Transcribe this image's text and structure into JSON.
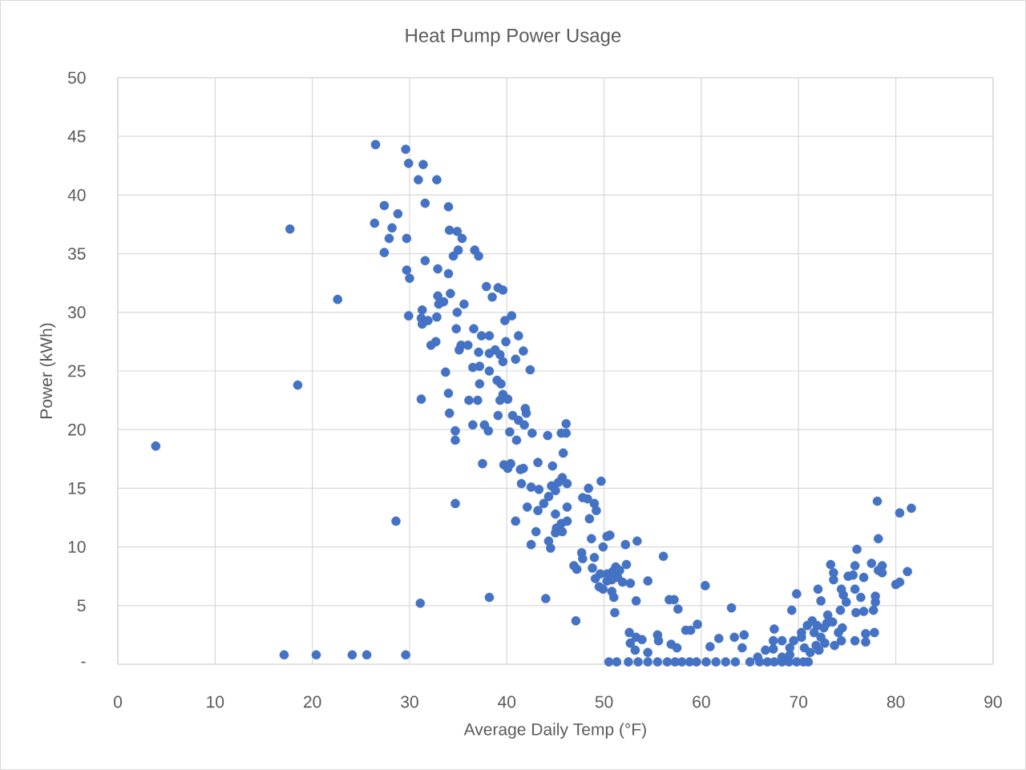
{
  "chart_data": {
    "type": "scatter",
    "title": "Heat Pump Power Usage",
    "xlabel": "Average Daily Temp (°F)",
    "ylabel": "Power (kWh)",
    "xlim": [
      0,
      90
    ],
    "xticks": [
      0,
      10,
      20,
      30,
      40,
      50,
      60,
      70,
      80,
      90
    ],
    "ylim": [
      0,
      50
    ],
    "yticks": [
      {
        "value": 0,
        "label": "-"
      },
      5,
      10,
      15,
      20,
      25,
      30,
      35,
      40,
      45,
      50
    ],
    "grid": true,
    "marker": "circle",
    "series": [
      {
        "color": "#4472c4",
        "x": [
          3.9,
          17.7,
          18.5,
          22.6,
          17.1,
          20.4,
          24.1,
          25.6,
          29.6,
          28.6,
          31.1,
          34.7,
          38.2,
          44.0,
          47.1,
          26.5,
          29.6,
          29.9,
          31.4,
          32.8,
          30.9,
          31.6,
          34.0,
          27.4,
          28.8,
          26.4,
          28.2,
          27.9,
          29.7,
          27.4,
          34.1,
          34.9,
          35.4,
          35.0,
          34.5,
          36.7,
          37.1,
          31.6,
          32.9,
          34.0,
          29.7,
          30.0,
          37.9,
          39.1,
          39.6,
          38.5,
          34.2,
          32.9,
          33.5,
          33.0,
          35.6,
          31.3,
          34.9,
          29.9,
          31.2,
          31.3,
          31.9,
          32.8,
          40.5,
          39.8,
          34.8,
          36.6,
          41.2,
          37.4,
          38.2,
          39.9,
          32.7,
          32.2,
          35.3,
          36.0,
          35.1,
          37.1,
          38.2,
          38.8,
          41.7,
          39.3,
          39.6,
          40.9,
          36.5,
          37.2,
          38.2,
          42.4,
          33.7,
          39.0,
          37.2,
          39.4,
          34.0,
          39.6,
          39.3,
          36.1,
          37.0,
          40.1,
          31.2,
          41.9,
          42.0,
          34.1,
          39.1,
          40.6,
          41.2,
          41.8,
          36.5,
          37.7,
          34.7,
          38.1,
          40.3,
          42.6,
          46.1,
          44.2,
          45.6,
          46.1,
          41.0,
          34.7,
          45.8,
          37.5,
          39.7,
          40.4,
          43.2,
          44.7,
          41.4,
          41.7,
          40.1,
          45.7,
          45.3,
          46.2,
          49.7,
          41.5,
          42.5,
          43.3,
          44.6,
          45.0,
          48.4,
          44.3,
          47.8,
          48.3,
          43.8,
          42.1,
          46.2,
          49.0,
          49.2,
          45.0,
          43.2,
          48.5,
          40.9,
          46.2,
          45.6,
          45.1,
          43.0,
          45.7,
          45.0,
          50.3,
          50.6,
          53.4,
          52.2,
          48.7,
          44.3,
          44.5,
          42.5,
          49.9,
          56.1,
          47.7,
          47.8,
          49.0,
          46.9,
          47.2,
          52.3,
          51.2,
          48.8,
          49.6,
          50.3,
          50.9,
          51.6,
          49.1,
          50.3,
          50.8,
          51.4,
          51.9,
          54.5,
          52.7,
          49.5,
          49.9,
          50.8,
          60.4,
          51.0,
          56.7,
          57.2,
          53.3,
          57.6,
          51.1,
          63.1,
          52.6,
          53.3,
          53.9,
          55.5,
          58.4,
          58.9,
          59.6,
          60.9,
          61.8,
          63.4,
          64.4,
          64.2,
          52.7,
          53.2,
          56.9,
          57.5,
          55.6,
          54.5,
          50.5,
          51.3,
          52.5,
          53.5,
          54.5,
          55.5,
          56.5,
          57.3,
          58.0,
          58.8,
          59.5,
          60.5,
          61.5,
          62.5,
          63.5,
          65.0,
          66.0,
          66.8,
          67.5,
          68.3,
          69.0,
          69.8,
          70.5,
          71.0,
          67.5,
          67.4,
          68.3,
          67.4,
          66.6,
          69.1,
          69.5,
          70.3,
          70.6,
          69.1,
          68.3,
          65.8,
          71.2,
          69.8,
          69.3,
          70.3,
          70.9,
          71.4,
          71.9,
          71.6,
          72.3,
          71.8,
          72.1,
          72.7,
          72.6,
          72.9,
          73.0,
          72.0,
          72.3,
          73.3,
          73.6,
          73.6,
          73.5,
          74.1,
          74.5,
          73.7,
          74.4,
          74.3,
          74.6,
          74.9,
          74.4,
          75.1,
          75.6,
          76.0,
          75.8,
          75.8,
          75.9,
          76.7,
          76.4,
          76.7,
          76.9,
          75.8,
          76.9,
          77.5,
          77.7,
          77.8,
          77.9,
          77.9,
          78.1,
          78.2,
          78.2,
          78.6,
          78.6,
          80.0,
          80.4,
          81.2,
          80.4,
          81.6
        ],
        "values": [
          18.6,
          37.1,
          23.8,
          31.1,
          0.8,
          0.8,
          0.8,
          0.8,
          0.8,
          12.2,
          5.2,
          13.7,
          5.7,
          5.6,
          3.7,
          44.3,
          43.9,
          42.7,
          42.6,
          41.3,
          41.3,
          39.3,
          39.0,
          39.1,
          38.4,
          37.6,
          37.2,
          36.3,
          36.3,
          35.1,
          37.0,
          36.9,
          36.3,
          35.3,
          34.8,
          35.3,
          34.8,
          34.4,
          33.7,
          33.3,
          33.6,
          32.9,
          32.2,
          32.1,
          31.9,
          31.3,
          31.6,
          31.4,
          30.9,
          30.7,
          30.7,
          30.2,
          30.0,
          29.7,
          29.5,
          29.0,
          29.3,
          29.6,
          29.7,
          29.3,
          28.6,
          28.6,
          28.0,
          28.0,
          28.0,
          27.5,
          27.5,
          27.2,
          27.2,
          27.2,
          26.8,
          26.6,
          26.5,
          26.8,
          26.7,
          26.4,
          25.8,
          26.0,
          25.3,
          25.4,
          25.0,
          25.1,
          24.9,
          24.2,
          23.9,
          23.9,
          23.1,
          23.0,
          22.5,
          22.5,
          22.5,
          22.6,
          22.6,
          21.8,
          21.4,
          21.4,
          21.2,
          21.2,
          20.8,
          20.4,
          20.4,
          20.4,
          19.9,
          19.9,
          19.8,
          19.7,
          20.5,
          19.5,
          19.7,
          19.7,
          19.1,
          19.1,
          18.0,
          17.1,
          17.0,
          17.1,
          17.2,
          16.9,
          16.6,
          16.7,
          16.7,
          15.9,
          15.5,
          15.4,
          15.6,
          15.4,
          15.1,
          14.9,
          15.2,
          14.8,
          15.0,
          14.3,
          14.2,
          14.1,
          13.7,
          13.4,
          13.4,
          13.7,
          13.1,
          12.8,
          13.1,
          12.4,
          12.2,
          12.2,
          12.0,
          11.6,
          11.3,
          11.3,
          11.2,
          10.9,
          11.0,
          10.5,
          10.2,
          10.7,
          10.5,
          9.9,
          10.2,
          10.0,
          9.2,
          9.5,
          9.0,
          9.1,
          8.4,
          8.1,
          8.5,
          8.3,
          8.2,
          7.7,
          7.7,
          7.9,
          8.0,
          7.3,
          7.1,
          7.2,
          7.4,
          7.0,
          7.1,
          6.9,
          6.6,
          6.4,
          6.2,
          6.7,
          5.7,
          5.5,
          5.5,
          5.4,
          4.7,
          4.4,
          4.8,
          2.7,
          2.3,
          2.1,
          2.5,
          2.9,
          2.9,
          3.4,
          1.5,
          2.2,
          2.3,
          2.5,
          1.4,
          1.8,
          1.2,
          1.7,
          1.4,
          2.0,
          1.0,
          0.2,
          0.2,
          0.2,
          0.2,
          0.2,
          0.2,
          0.2,
          0.2,
          0.2,
          0.2,
          0.2,
          0.2,
          0.2,
          0.2,
          0.2,
          0.2,
          0.2,
          0.2,
          0.2,
          0.2,
          0.2,
          0.2,
          0.2,
          0.2,
          3.0,
          2.0,
          2.0,
          1.3,
          1.2,
          1.4,
          2.0,
          2.3,
          1.4,
          0.8,
          0.6,
          0.6,
          1.0,
          6.0,
          4.6,
          2.7,
          3.3,
          3.7,
          3.3,
          2.7,
          2.3,
          1.6,
          1.2,
          1.8,
          3.1,
          3.5,
          4.2,
          6.4,
          5.4,
          8.5,
          7.8,
          7.2,
          3.6,
          2.7,
          3.1,
          1.6,
          2.0,
          4.6,
          5.9,
          5.3,
          6.4,
          7.5,
          7.6,
          9.8,
          8.4,
          6.4,
          4.4,
          4.5,
          5.7,
          7.4,
          2.6,
          2.0,
          1.9,
          8.6,
          4.6,
          2.7,
          5.8,
          5.3,
          13.9,
          10.7,
          8.0,
          7.8,
          8.4,
          6.8,
          7.0,
          7.9,
          12.9,
          13.3
        ]
      }
    ]
  }
}
